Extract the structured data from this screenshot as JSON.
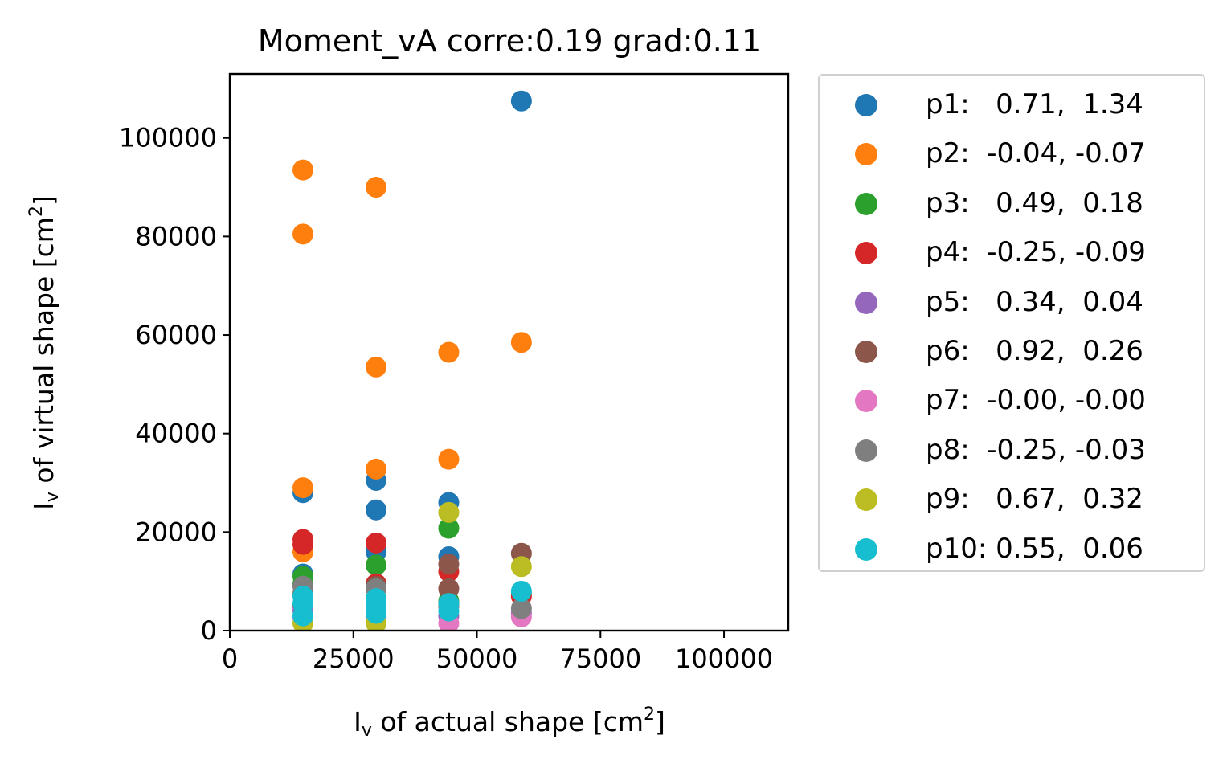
{
  "chart_data": {
    "type": "scatter",
    "title": "Moment_vA corre:0.19 grad:0.11",
    "xlabel": {
      "base": "I",
      "sub": "v",
      "text": " of actual shape [cm",
      "sup": "2",
      "end": "]"
    },
    "ylabel": {
      "base": "I",
      "sub": "v",
      "text": " of virtual shape [cm",
      "sup": "2",
      "end": "]"
    },
    "xlim": [
      0,
      113000
    ],
    "ylim": [
      0,
      113000
    ],
    "xticks": [
      "0",
      "25000",
      "50000",
      "75000",
      "100000"
    ],
    "xtick_values": [
      0,
      25000,
      50000,
      75000,
      100000
    ],
    "yticks": [
      "0",
      "20000",
      "40000",
      "60000",
      "80000",
      "100000"
    ],
    "ytick_values": [
      0,
      20000,
      40000,
      60000,
      80000,
      100000
    ],
    "legend_position": "outside-right",
    "series": [
      {
        "name": "p1:   0.71,  1.34",
        "color": "#1f77b4",
        "points": [
          [
            14800,
            28000
          ],
          [
            14800,
            11500
          ],
          [
            29600,
            30500
          ],
          [
            29600,
            24500
          ],
          [
            29600,
            16000
          ],
          [
            44300,
            26000
          ],
          [
            44300,
            15000
          ],
          [
            59000,
            107500
          ]
        ]
      },
      {
        "name": "p2:  -0.04, -0.07",
        "color": "#ff7f0e",
        "points": [
          [
            14800,
            93500
          ],
          [
            14800,
            80500
          ],
          [
            14800,
            29000
          ],
          [
            14800,
            16000
          ],
          [
            29600,
            90000
          ],
          [
            29600,
            53500
          ],
          [
            29600,
            32800
          ],
          [
            44300,
            56500
          ],
          [
            44300,
            34800
          ],
          [
            59000,
            58500
          ]
        ]
      },
      {
        "name": "p3:   0.49,  0.18",
        "color": "#2ca02c",
        "points": [
          [
            14800,
            11000
          ],
          [
            14800,
            9500
          ],
          [
            29600,
            13300
          ],
          [
            44300,
            20800
          ],
          [
            44300,
            6000
          ],
          [
            59000,
            7500
          ]
        ]
      },
      {
        "name": "p4:  -0.25, -0.09",
        "color": "#d62728",
        "points": [
          [
            14800,
            18500
          ],
          [
            14800,
            17500
          ],
          [
            14800,
            5000
          ],
          [
            29600,
            17800
          ],
          [
            29600,
            9500
          ],
          [
            44300,
            12000
          ],
          [
            44300,
            5000
          ],
          [
            59000,
            7000
          ]
        ]
      },
      {
        "name": "p5:   0.34,  0.04",
        "color": "#9467bd",
        "points": [
          [
            14800,
            4000
          ],
          [
            29600,
            3500
          ],
          [
            44300,
            3000
          ],
          [
            59000,
            3500
          ]
        ]
      },
      {
        "name": "p6:   0.92,  0.26",
        "color": "#8c564b",
        "points": [
          [
            14800,
            7500
          ],
          [
            29600,
            9000
          ],
          [
            44300,
            13500
          ],
          [
            44300,
            8500
          ],
          [
            59000,
            15700
          ]
        ]
      },
      {
        "name": "p7:  -0.00, -0.00",
        "color": "#e377c2",
        "points": [
          [
            14800,
            2500
          ],
          [
            29600,
            2000
          ],
          [
            44300,
            1500
          ],
          [
            59000,
            2800
          ]
        ]
      },
      {
        "name": "p8:  -0.25, -0.03",
        "color": "#7f7f7f",
        "points": [
          [
            14800,
            9000
          ],
          [
            29600,
            8500
          ],
          [
            44300,
            5500
          ],
          [
            59000,
            4500
          ]
        ]
      },
      {
        "name": "p9:   0.67,  0.32",
        "color": "#bcbd22",
        "points": [
          [
            14800,
            1500
          ],
          [
            29600,
            1500
          ],
          [
            44300,
            24000
          ],
          [
            59000,
            13000
          ]
        ]
      },
      {
        "name": "p10: 0.55,  0.06",
        "color": "#17becf",
        "points": [
          [
            14800,
            7000
          ],
          [
            14800,
            5500
          ],
          [
            14800,
            3000
          ],
          [
            29600,
            6500
          ],
          [
            29600,
            5000
          ],
          [
            29600,
            3500
          ],
          [
            44300,
            5500
          ],
          [
            44300,
            4000
          ],
          [
            59000,
            8000
          ]
        ]
      }
    ]
  }
}
